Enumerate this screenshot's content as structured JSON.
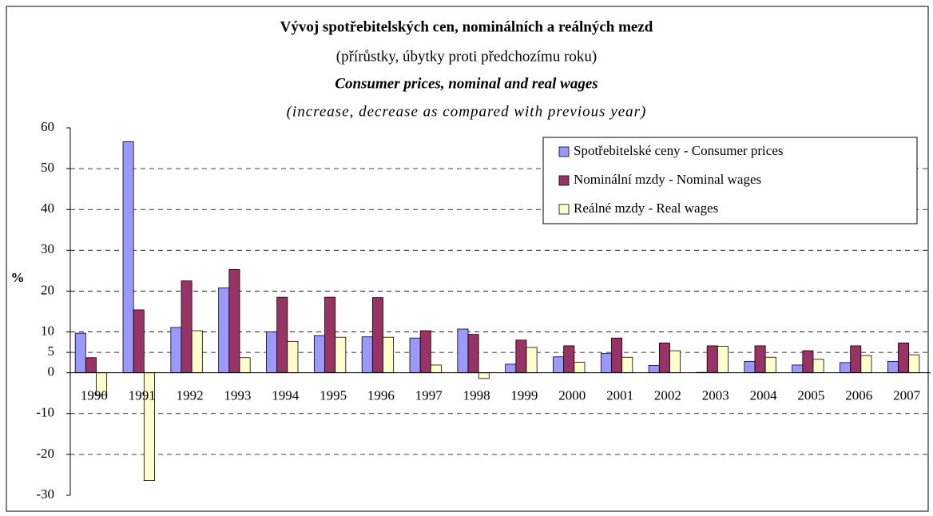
{
  "chart_data": {
    "type": "bar",
    "title": "Vývoj spotřebitelských cen, nominálních a reálných mezd",
    "subtitle": "(přírůstky, úbytky proti předchozímu roku)",
    "title_en": "Consumer prices, nominal and real wages",
    "subtitle_en": "(increase, decrease as compared with previous year)",
    "y_label": "%",
    "categories": [
      "1990",
      "1991",
      "1992",
      "1993",
      "1994",
      "1995",
      "1996",
      "1997",
      "1998",
      "1999",
      "2000",
      "2001",
      "2002",
      "2003",
      "2004",
      "2005",
      "2006",
      "2007"
    ],
    "series": [
      {
        "name": "Spotřebitelské ceny - Consumer prices",
        "color": "#9999ff",
        "values": [
          9.7,
          56.6,
          11.1,
          20.8,
          10.0,
          9.1,
          8.8,
          8.5,
          10.7,
          2.1,
          3.9,
          4.7,
          1.8,
          0.1,
          2.8,
          1.9,
          2.5,
          2.8
        ]
      },
      {
        "name": "Nominální mzdy - Nominal wages",
        "color": "#993366",
        "values": [
          3.7,
          15.4,
          22.5,
          25.3,
          18.5,
          18.5,
          18.4,
          10.3,
          9.4,
          8.0,
          6.6,
          8.5,
          7.3,
          6.6,
          6.6,
          5.4,
          6.6,
          7.3
        ]
      },
      {
        "name": "Reálné mzdy - Real wages",
        "color": "#ffffcc",
        "values": [
          -5.4,
          -26.4,
          10.3,
          3.7,
          7.7,
          8.7,
          8.7,
          1.9,
          -1.4,
          6.2,
          2.6,
          3.8,
          5.4,
          6.5,
          3.8,
          3.3,
          4.2,
          4.4
        ]
      }
    ],
    "ylim": [
      -30,
      60
    ],
    "yticks": [
      60,
      50,
      40,
      30,
      20,
      10,
      5,
      0,
      -10,
      -20,
      -30
    ],
    "grid": true,
    "legend": "upper right"
  }
}
